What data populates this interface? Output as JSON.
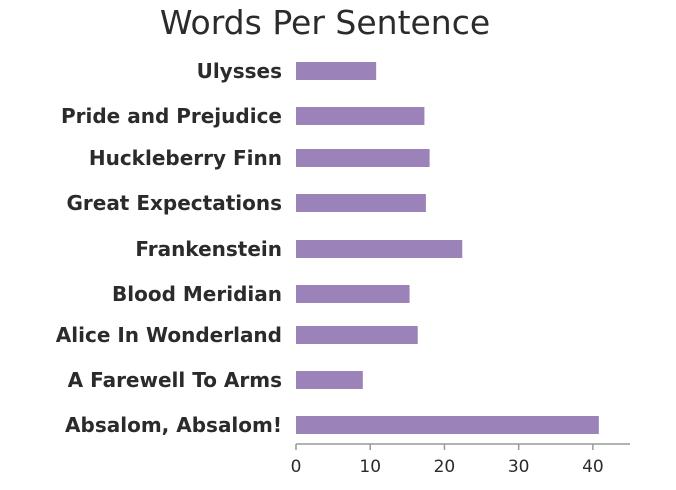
{
  "chart_data": {
    "type": "bar",
    "orientation": "horizontal",
    "title": "Words Per Sentence",
    "xlabel": "",
    "ylabel": "",
    "categories": [
      "Ulysses",
      "Pride and Prejudice",
      "Huckleberry Finn",
      "Great Expectations",
      "Frankenstein",
      "Blood Meridian",
      "Alice In Wonderland",
      "A Farewell To Arms",
      "Absalom, Absalom!"
    ],
    "values": [
      10.8,
      17.3,
      18.0,
      17.5,
      22.4,
      15.3,
      16.4,
      9.0,
      40.8
    ],
    "xlim": [
      0,
      45
    ],
    "xticks": [
      0,
      10,
      20,
      30,
      40
    ],
    "grid": false,
    "legend": "none",
    "bar_color": "#9b82b8"
  }
}
